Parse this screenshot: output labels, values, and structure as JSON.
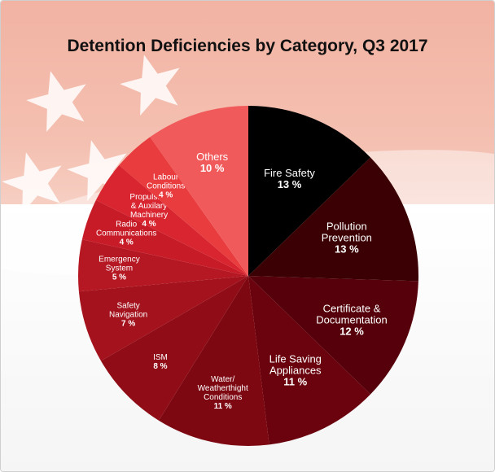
{
  "chart_data": {
    "type": "pie",
    "title": "Detention Deficiencies by Category, Q3 2017",
    "unit": "%",
    "slices": [
      {
        "lines": [
          "Fire Safety"
        ],
        "value": 13,
        "label": "13 %",
        "color": "#000000",
        "text_color": "#ffffff"
      },
      {
        "lines": [
          "Pollution",
          "Prevention"
        ],
        "value": 13,
        "label": "13 %",
        "color": "#3a0003",
        "text_color": "#ffffff"
      },
      {
        "lines": [
          "Certificate &",
          "Documentation"
        ],
        "value": 12,
        "label": "12 %",
        "color": "#55000a",
        "text_color": "#ffffff"
      },
      {
        "lines": [
          "Life Saving",
          "Appliances"
        ],
        "value": 11,
        "label": "11 %",
        "color": "#6a030d",
        "text_color": "#ffffff"
      },
      {
        "lines": [
          "Water/",
          "Weatherthight",
          "Conditions"
        ],
        "value": 11,
        "label": "11 %",
        "color": "#7e0812",
        "text_color": "#ffffff"
      },
      {
        "lines": [
          "ISM"
        ],
        "value": 8,
        "label": "8 %",
        "color": "#900d17",
        "text_color": "#ffffff"
      },
      {
        "lines": [
          "Safety",
          "Navigation"
        ],
        "value": 7,
        "label": "7 %",
        "color": "#a3121d",
        "text_color": "#ffffff"
      },
      {
        "lines": [
          "Emergency",
          "System"
        ],
        "value": 5,
        "label": "5 %",
        "color": "#b51823",
        "text_color": "#ffffff"
      },
      {
        "lines": [
          "Radio",
          "Communications"
        ],
        "value": 4,
        "label": "4 %",
        "color": "#c71c28",
        "text_color": "#ffffff"
      },
      {
        "lines": [
          "Propulsion",
          "& Auxilary",
          "Machinery"
        ],
        "value": 4,
        "label": "4 %",
        "color": "#d82530",
        "text_color": "#ffffff"
      },
      {
        "lines": [
          "Labour",
          "Conditions"
        ],
        "value": 4,
        "label": "4 %",
        "color": "#e83c3f",
        "text_color": "#ffffff"
      },
      {
        "lines": [
          "Others"
        ],
        "value": 10,
        "label": "10 %",
        "color": "#f15a5a",
        "text_color": "#ffffff"
      }
    ]
  }
}
